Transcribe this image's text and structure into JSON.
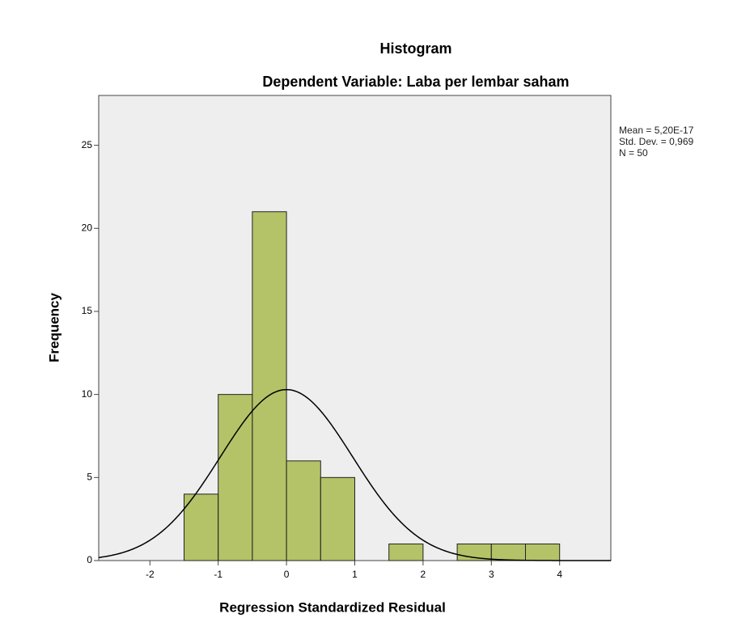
{
  "chart_data": {
    "type": "histogram",
    "title": "Histogram",
    "subtitle": "Dependent Variable: Laba per lembar saham",
    "x_label": "Regression Standardized Residual",
    "y_label": "Frequency",
    "bins": [
      -1.5,
      -1,
      -0.5,
      0,
      0.5,
      1,
      1.5,
      2,
      2.5,
      3,
      3.5,
      4
    ],
    "counts": [
      4,
      10,
      21,
      6,
      5,
      0,
      1,
      0,
      1,
      1,
      1
    ],
    "color": "#a9bb4f",
    "xlim": [
      -2.75,
      4.75
    ],
    "xticks": [
      -2,
      -1,
      0,
      1,
      2,
      3,
      4
    ],
    "ylim": [
      0,
      28
    ],
    "yticks": [
      0,
      5,
      10,
      15,
      20,
      25
    ],
    "normal_curve": {
      "mean": {
        "value": 5.2e-17,
        "label": "Mean = 5,20E-17"
      },
      "std_dev": {
        "value": 0.969,
        "label": "Std. Dev. = 0,969"
      },
      "n": {
        "value": 50,
        "label": "N = 50"
      }
    }
  }
}
